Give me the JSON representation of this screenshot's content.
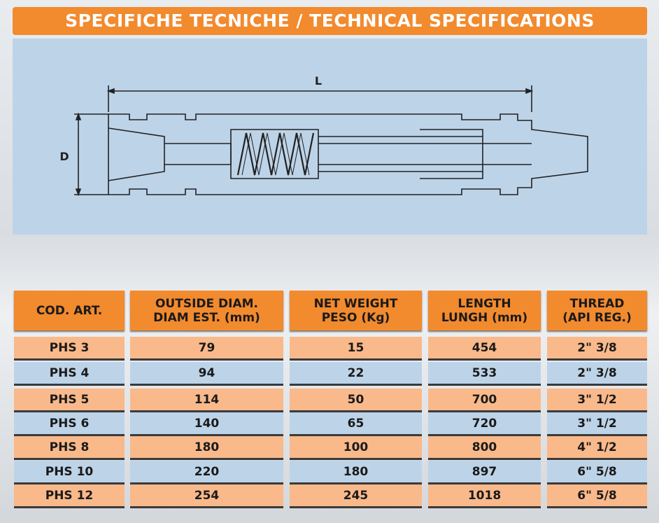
{
  "header": {
    "title": "SPECIFICHE TECNICHE / TECHNICAL SPECIFICATIONS"
  },
  "diagram": {
    "length_label": "L",
    "diameter_label": "D"
  },
  "table": {
    "headers": [
      [
        "COD. ART."
      ],
      [
        "OUTSIDE DIAM.",
        "DIAM EST. (mm)"
      ],
      [
        "NET WEIGHT",
        "PESO (Kg)"
      ],
      [
        "LENGTH",
        "LUNGH (mm)"
      ],
      [
        "THREAD",
        "(API REG.)"
      ]
    ],
    "rows": [
      [
        "PHS 3",
        79,
        15,
        454,
        "2\" 3/8"
      ],
      [
        "PHS 4",
        94,
        22,
        533,
        "2\" 3/8"
      ],
      [
        "PHS 5",
        114,
        50,
        700,
        "3\" 1/2"
      ],
      [
        "PHS 6",
        140,
        65,
        720,
        "3\" 1/2"
      ],
      [
        "PHS 8",
        180,
        100,
        800,
        "4\" 1/2"
      ],
      [
        "PHS 10",
        220,
        180,
        897,
        "6\" 5/8"
      ],
      [
        "PHS 12",
        254,
        245,
        1018,
        "6\" 5/8"
      ]
    ]
  }
}
